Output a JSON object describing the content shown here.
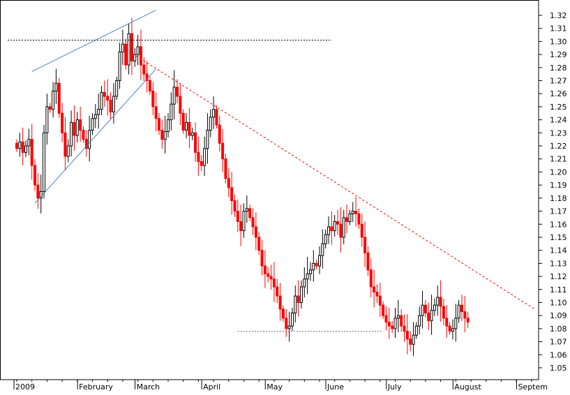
{
  "chart_data": {
    "type": "candlestick",
    "title": "",
    "xlabel": "",
    "ylabel": "",
    "ylim": [
      1.04,
      1.33
    ],
    "grid": false,
    "colors": {
      "up": "#000000",
      "down": "#ff0000",
      "trend_upper": "#4f81bd",
      "trend_down": "#ff0000",
      "level": "#000000"
    },
    "y_ticks": [
      1.05,
      1.06,
      1.07,
      1.08,
      1.09,
      1.1,
      1.11,
      1.12,
      1.13,
      1.14,
      1.15,
      1.16,
      1.17,
      1.18,
      1.19,
      1.2,
      1.21,
      1.22,
      1.23,
      1.24,
      1.25,
      1.26,
      1.27,
      1.28,
      1.29,
      1.3,
      1.31,
      1.32
    ],
    "x_labels": [
      {
        "label": "2009",
        "pos": 0
      },
      {
        "label": "February",
        "pos": 21
      },
      {
        "label": "March",
        "pos": 40
      },
      {
        "label": "April",
        "pos": 62
      },
      {
        "label": "May",
        "pos": 83
      },
      {
        "label": "June",
        "pos": 103
      },
      {
        "label": "July",
        "pos": 123
      },
      {
        "label": "August",
        "pos": 145
      },
      {
        "label": "Septem",
        "pos": 166
      }
    ],
    "close": [
      1.218,
      1.223,
      1.215,
      1.22,
      1.225,
      1.205,
      1.19,
      1.18,
      1.185,
      1.23,
      1.25,
      1.248,
      1.262,
      1.268,
      1.245,
      1.23,
      1.212,
      1.22,
      1.238,
      1.228,
      1.24,
      1.232,
      1.225,
      1.218,
      1.232,
      1.241,
      1.244,
      1.248,
      1.261,
      1.258,
      1.255,
      1.246,
      1.258,
      1.27,
      1.292,
      1.298,
      1.282,
      1.306,
      1.285,
      1.29,
      1.296,
      1.282,
      1.275,
      1.27,
      1.262,
      1.25,
      1.241,
      1.232,
      1.225,
      1.231,
      1.24,
      1.252,
      1.265,
      1.258,
      1.245,
      1.232,
      1.238,
      1.228,
      1.23,
      1.215,
      1.208,
      1.205,
      1.218,
      1.232,
      1.242,
      1.248,
      1.236,
      1.222,
      1.21,
      1.195,
      1.188,
      1.178,
      1.17,
      1.162,
      1.155,
      1.17,
      1.172,
      1.165,
      1.158,
      1.15,
      1.14,
      1.128,
      1.122,
      1.12,
      1.118,
      1.112,
      1.105,
      1.095,
      1.088,
      1.08,
      1.082,
      1.092,
      1.105,
      1.1,
      1.112,
      1.118,
      1.122,
      1.125,
      1.13,
      1.128,
      1.136,
      1.145,
      1.152,
      1.158,
      1.155,
      1.162,
      1.16,
      1.15,
      1.165,
      1.162,
      1.168,
      1.17,
      1.168,
      1.16,
      1.15,
      1.138,
      1.125,
      1.112,
      1.108,
      1.105,
      1.098,
      1.09,
      1.085,
      1.082,
      1.08,
      1.088,
      1.09,
      1.082,
      1.078,
      1.072,
      1.068,
      1.075,
      1.082,
      1.09,
      1.098,
      1.092,
      1.086,
      1.094,
      1.098,
      1.104,
      1.097,
      1.088,
      1.082,
      1.078,
      1.08,
      1.088,
      1.098,
      1.093,
      1.088,
      1.085
    ],
    "trend_lines": [
      {
        "name": "channel-upper",
        "from": {
          "i": 5,
          "y": 1.277
        },
        "to": {
          "i": 46,
          "y": 1.324
        }
      },
      {
        "name": "channel-lower",
        "from": {
          "i": 6,
          "y": 1.176
        },
        "to": {
          "i": 46,
          "y": 1.279
        }
      },
      {
        "name": "downtrend",
        "from": {
          "i": 36,
          "y": 1.294
        },
        "to": {
          "i": 171,
          "y": 1.095
        }
      },
      {
        "name": "resistance",
        "from": {
          "i": -3,
          "y": 1.301
        },
        "to": {
          "i": 104,
          "y": 1.301
        }
      },
      {
        "name": "support",
        "from": {
          "i": 73,
          "y": 1.078
        },
        "to": {
          "i": 121,
          "y": 1.078
        }
      }
    ]
  }
}
